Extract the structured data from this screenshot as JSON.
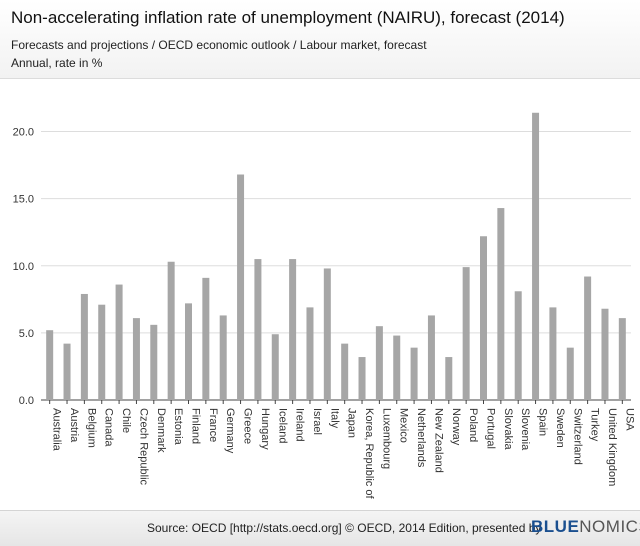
{
  "header": {
    "title": "Non-accelerating inflation rate of unemployment (NAIRU), forecast (2014)",
    "subtitle": "Forecasts and projections / OECD economic outlook / Labour market, forecast",
    "unit": "Annual, rate in %"
  },
  "footer": {
    "source": "Source: OECD [http://stats.oecd.org] © OECD, 2014 Edition, presented by",
    "brand_part1": "BLUE",
    "brand_part2": "NOMICS"
  },
  "colors": {
    "bar": "#a6a6a6",
    "grid": "#dddddd",
    "axis": "#444444",
    "brand": "#1a4f8f"
  },
  "chart_data": {
    "type": "bar",
    "categories": [
      "Australia",
      "Austria",
      "Belgium",
      "Canada",
      "Chile",
      "Czech Republic",
      "Denmark",
      "Estonia",
      "Finland",
      "France",
      "Germany",
      "Greece",
      "Hungary",
      "Iceland",
      "Ireland",
      "Israel",
      "Italy",
      "Japan",
      "Korea, Republic of",
      "Luxembourg",
      "Mexico",
      "Netherlands",
      "New Zealand",
      "Norway",
      "Poland",
      "Portugal",
      "Slovakia",
      "Slovenia",
      "Spain",
      "Sweden",
      "Switzerland",
      "Turkey",
      "United Kingdom",
      "USA"
    ],
    "values": [
      5.2,
      4.2,
      7.9,
      7.1,
      8.6,
      6.1,
      5.6,
      10.3,
      7.2,
      9.1,
      6.3,
      16.8,
      10.5,
      4.9,
      10.5,
      6.9,
      9.8,
      4.2,
      3.2,
      5.5,
      4.8,
      3.9,
      6.3,
      3.2,
      9.9,
      12.2,
      14.3,
      8.1,
      21.4,
      6.9,
      3.9,
      9.2,
      6.8,
      6.1
    ],
    "yticks": [
      0.0,
      5.0,
      10.0,
      15.0,
      20.0
    ],
    "ylim": [
      0,
      22.5
    ],
    "grid": true,
    "xlabel": "",
    "ylabel": ""
  }
}
